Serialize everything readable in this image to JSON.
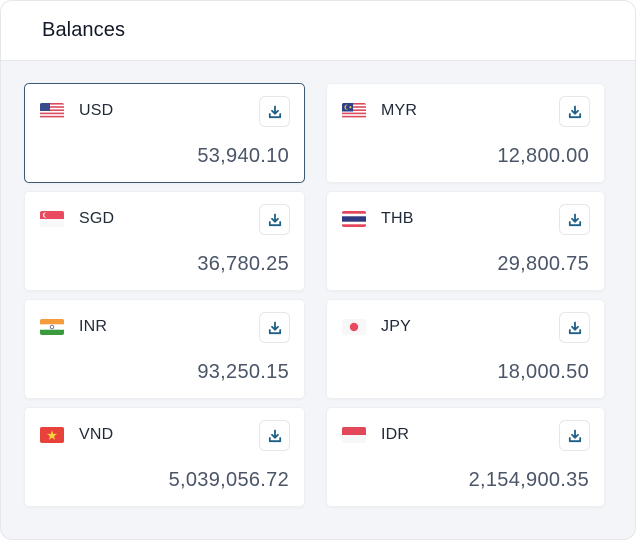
{
  "panel": {
    "title": "Balances"
  },
  "balances": [
    {
      "code": "USD",
      "amount": "53,940.10",
      "flag": "us-flag-icon"
    },
    {
      "code": "MYR",
      "amount": "12,800.00",
      "flag": "my-flag-icon"
    },
    {
      "code": "SGD",
      "amount": "36,780.25",
      "flag": "sg-flag-icon"
    },
    {
      "code": "THB",
      "amount": "29,800.75",
      "flag": "th-flag-icon"
    },
    {
      "code": "INR",
      "amount": "93,250.15",
      "flag": "in-flag-icon"
    },
    {
      "code": "JPY",
      "amount": "18,000.50",
      "flag": "jp-flag-icon"
    },
    {
      "code": "VND",
      "amount": "5,039,056.72",
      "flag": "vn-flag-icon"
    },
    {
      "code": "IDR",
      "amount": "2,154,900.35",
      "flag": "id-flag-icon"
    }
  ],
  "icons": {
    "download": "download-icon"
  },
  "colors": {
    "selected_border": "#3d5a72",
    "download_icon": "#1d5f86",
    "amount_text": "#4b5568"
  }
}
